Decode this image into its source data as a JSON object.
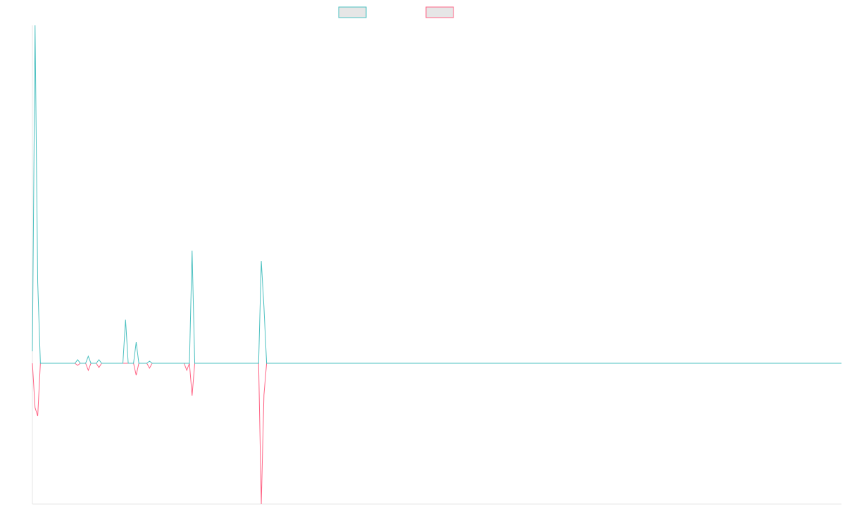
{
  "chart_data": {
    "type": "line",
    "legend": {
      "placement": "top-center",
      "show_text": false
    },
    "colors": {
      "series_1": "#4bc0c0",
      "series_2": "#ff6384",
      "legend_fill": "#e6e6e6",
      "axis": "#e6e6e6"
    },
    "x": [
      0,
      1,
      2,
      3,
      4,
      5,
      6,
      7,
      8,
      9,
      10,
      11,
      12,
      13,
      14,
      15,
      16,
      17,
      18,
      19,
      20,
      21,
      22,
      23,
      24,
      25,
      26,
      27,
      28,
      29,
      30,
      31,
      32,
      33,
      34,
      35,
      36,
      37,
      38,
      39,
      40,
      41,
      42,
      43,
      44,
      45,
      46,
      47,
      48,
      49,
      50,
      51,
      52,
      53,
      54,
      55,
      56,
      57,
      58,
      59,
      60,
      61,
      62,
      63,
      64,
      65,
      66,
      67,
      68,
      69,
      70,
      71,
      72,
      73,
      74,
      75,
      76,
      77,
      78,
      79,
      80,
      81,
      82,
      83,
      84,
      85,
      86,
      87,
      88,
      89,
      90,
      91,
      92,
      93,
      94,
      95,
      96,
      97,
      98,
      99,
      100,
      101,
      102,
      103,
      104,
      105,
      106,
      107,
      108,
      109,
      110,
      111,
      112,
      113,
      114,
      115,
      116,
      117,
      118,
      119,
      120,
      121,
      122,
      123,
      124,
      125,
      126,
      127,
      128,
      129,
      130,
      131,
      132,
      133,
      134,
      135,
      136,
      137,
      138,
      139,
      140,
      141,
      142,
      143,
      144,
      145,
      146,
      147,
      148,
      149,
      150,
      151,
      152,
      153,
      154,
      155,
      156,
      157,
      158,
      159,
      160,
      161,
      162,
      163,
      164,
      165,
      166,
      167,
      168,
      169,
      170,
      171,
      172,
      173,
      174,
      175,
      176,
      177,
      178,
      179,
      180,
      181,
      182,
      183,
      184,
      185,
      186,
      187,
      188,
      189,
      190,
      191,
      192,
      193,
      194,
      195,
      196,
      197,
      198,
      199,
      200,
      201,
      202,
      203,
      204,
      205,
      206,
      207,
      208,
      209,
      210,
      211,
      212,
      213,
      214,
      215,
      216,
      217,
      218,
      219,
      220,
      221,
      222,
      223,
      224,
      225,
      226,
      227,
      228,
      229,
      230,
      231,
      232,
      233,
      234,
      235,
      236,
      237,
      238,
      239,
      240,
      241,
      242,
      243,
      244,
      245,
      246,
      247,
      248,
      249,
      250,
      251,
      252,
      253,
      254,
      255,
      256,
      257,
      258,
      259,
      260,
      261,
      262,
      263,
      264,
      265,
      266,
      267,
      268,
      269,
      270,
      271,
      272,
      273,
      274,
      275,
      276,
      277,
      278,
      279,
      280,
      281,
      282,
      283,
      284,
      285,
      286,
      287,
      288,
      289,
      290,
      291,
      292,
      293,
      294,
      295,
      296,
      297,
      298,
      299,
      300,
      301,
      302,
      303,
      304
    ],
    "xlim": [
      0,
      304
    ],
    "ylim": [
      -200,
      480
    ],
    "series": [
      {
        "values": [
          17,
          480,
          115,
          0,
          0,
          0,
          0,
          0,
          0,
          0,
          0,
          0,
          0,
          0,
          0,
          0,
          0,
          5,
          0,
          0,
          0,
          10,
          0,
          0,
          0,
          5,
          0,
          0,
          0,
          0,
          0,
          0,
          0,
          0,
          0,
          62,
          0,
          0,
          0,
          30,
          0,
          0,
          0,
          0,
          3,
          0,
          0,
          0,
          0,
          0,
          0,
          0,
          0,
          0,
          0,
          0,
          0,
          0,
          0,
          0,
          160,
          0,
          0,
          0,
          0,
          0,
          0,
          0,
          0,
          0,
          0,
          0,
          0,
          0,
          0,
          0,
          0,
          0,
          0,
          0,
          0,
          0,
          0,
          0,
          0,
          0,
          145,
          80,
          0,
          0,
          0,
          0,
          0,
          0,
          0,
          0,
          0,
          0,
          0,
          0,
          0,
          0,
          0,
          0,
          0,
          0,
          0,
          0,
          0,
          0,
          0,
          0,
          0,
          0,
          0,
          0,
          0,
          0,
          0,
          0,
          0,
          0,
          0,
          0,
          0,
          0,
          0,
          0,
          0,
          0,
          0,
          0,
          0,
          0,
          0,
          0,
          0,
          0,
          0,
          0,
          0,
          0,
          0,
          0,
          0,
          0,
          0,
          0,
          0,
          0,
          0,
          0,
          0,
          0,
          0,
          0,
          0,
          0,
          0,
          0,
          0,
          0,
          0,
          0,
          0,
          0,
          0,
          0,
          0,
          0,
          0,
          0,
          0,
          0,
          0,
          0,
          0,
          0,
          0,
          0,
          0,
          0,
          0,
          0,
          0,
          0,
          0,
          0,
          0,
          0,
          0,
          0,
          0,
          0,
          0,
          0,
          0,
          0,
          0,
          0,
          0,
          0,
          0,
          0,
          0,
          0,
          0,
          0,
          0,
          0,
          0,
          0,
          0,
          0,
          0,
          0,
          0,
          0,
          0,
          0,
          0,
          0,
          0,
          0,
          0,
          0,
          0,
          0,
          0,
          0,
          0,
          0,
          0,
          0,
          0,
          0,
          0,
          0,
          0,
          0,
          0,
          0,
          0,
          0,
          0,
          0,
          0,
          0,
          0,
          0,
          0,
          0,
          0,
          0,
          0,
          0,
          0,
          0,
          0,
          0,
          0,
          0,
          0,
          0,
          0,
          0,
          0,
          0,
          0,
          0,
          0,
          0,
          0,
          0,
          0,
          0,
          0,
          0,
          0,
          0,
          0,
          0,
          0,
          0,
          0,
          0,
          0,
          0,
          0,
          0,
          0,
          0,
          0,
          0,
          0,
          0,
          0,
          0,
          0,
          0,
          0,
          0,
          0,
          0,
          0
        ]
      },
      {
        "values": [
          0,
          -63,
          -75,
          0,
          0,
          0,
          0,
          0,
          0,
          0,
          0,
          0,
          0,
          0,
          0,
          0,
          0,
          -3,
          0,
          0,
          0,
          -10,
          0,
          0,
          0,
          -6,
          0,
          0,
          0,
          0,
          0,
          0,
          0,
          0,
          0,
          0,
          0,
          0,
          0,
          -17,
          0,
          0,
          0,
          0,
          -7,
          0,
          0,
          0,
          0,
          0,
          0,
          0,
          0,
          0,
          0,
          0,
          0,
          0,
          -10,
          0,
          -46,
          0,
          0,
          0,
          0,
          0,
          0,
          0,
          0,
          0,
          0,
          0,
          0,
          0,
          0,
          0,
          0,
          0,
          0,
          0,
          0,
          0,
          0,
          0,
          0,
          0,
          -200,
          -45,
          0,
          0,
          0,
          0,
          0,
          0,
          0,
          0,
          0,
          0,
          0,
          0,
          0,
          0,
          0,
          0,
          0,
          0,
          0,
          0,
          0,
          0,
          0,
          0,
          0,
          0,
          0,
          0,
          0,
          0,
          0,
          0,
          0,
          0,
          0,
          0,
          0,
          0,
          0,
          0,
          0,
          0,
          0,
          0,
          0,
          0,
          0,
          0,
          0,
          0,
          0,
          0,
          0,
          0,
          0,
          0,
          0,
          0,
          0,
          0,
          0,
          0,
          0,
          0,
          0,
          0,
          0,
          0,
          0,
          0,
          0,
          0,
          0,
          0,
          0,
          0,
          0,
          0,
          0,
          0,
          0,
          0,
          0,
          0,
          0,
          0,
          0,
          0,
          0,
          0,
          0,
          0,
          0,
          0,
          0,
          0,
          0,
          0,
          0,
          0,
          0,
          0,
          0,
          0,
          0,
          0,
          0,
          0,
          0,
          0,
          0,
          0,
          0,
          0,
          0,
          0,
          0,
          0,
          0,
          0,
          0,
          0,
          0,
          0,
          0,
          0,
          0,
          0,
          0,
          0,
          0,
          0,
          0,
          0,
          0,
          0,
          0,
          0,
          0,
          0,
          0,
          0,
          0,
          0,
          0,
          0,
          0,
          0,
          0,
          0,
          0,
          0,
          0,
          0,
          0,
          0,
          0,
          0,
          0,
          0,
          0,
          0,
          0,
          0,
          0,
          0,
          0,
          0,
          0,
          0,
          0,
          0,
          0,
          0,
          0,
          0,
          0,
          0,
          0,
          0,
          0,
          0,
          0,
          0,
          0,
          0,
          0,
          0,
          0,
          0,
          0,
          0,
          0,
          0,
          0,
          0,
          0,
          0,
          0,
          0,
          0,
          0,
          0,
          0,
          0,
          0,
          0,
          0,
          0,
          0,
          0,
          0,
          0,
          0,
          0,
          0,
          0
        ]
      }
    ]
  }
}
